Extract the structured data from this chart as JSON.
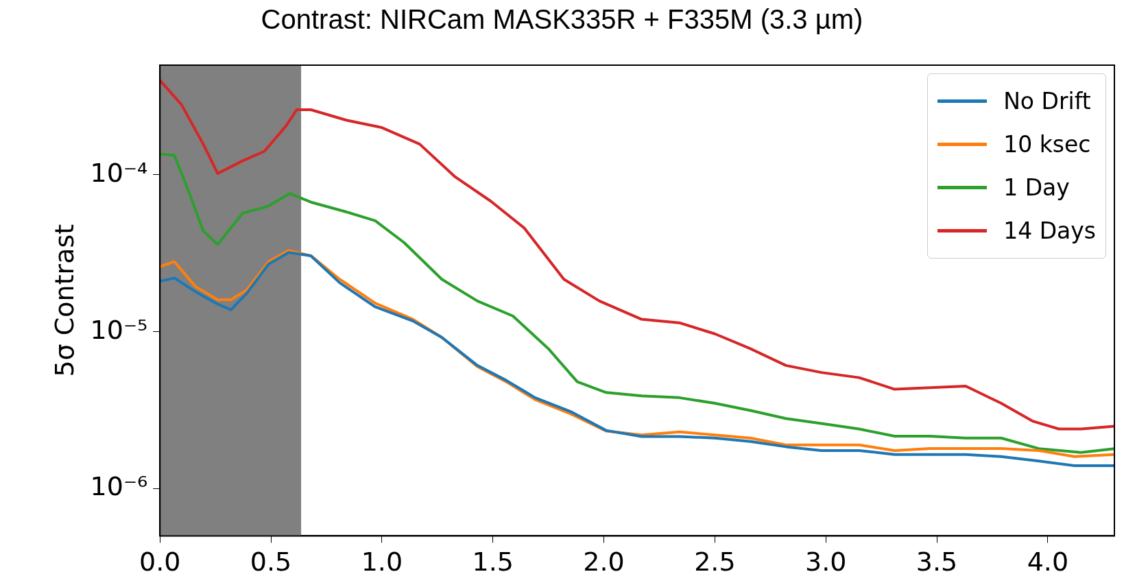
{
  "chart_data": {
    "type": "line",
    "title": "Contrast: NIRCam MASK335R + F335M (3.3 µm)",
    "ylabel": "5σ Contrast",
    "xlim": [
      0,
      4.3
    ],
    "xticks": [
      {
        "value": 0,
        "label": "0.0"
      },
      {
        "value": 0.5,
        "label": "0.5"
      },
      {
        "value": 1,
        "label": "1.0"
      },
      {
        "value": 1.5,
        "label": "1.5"
      },
      {
        "value": 2,
        "label": "2.0"
      },
      {
        "value": 2.5,
        "label": "2.5"
      },
      {
        "value": 3,
        "label": "3.0"
      },
      {
        "value": 3.5,
        "label": "3.5"
      },
      {
        "value": 4,
        "label": "4.0"
      }
    ],
    "ylim": [
      5e-07,
      0.0005
    ],
    "yticks": [
      {
        "value": 1e-06,
        "label": "10⁻⁶"
      },
      {
        "value": 1e-05,
        "label": "10⁻⁵"
      },
      {
        "value": 0.0001,
        "label": "10⁻⁴"
      }
    ],
    "log": "y",
    "grid": false,
    "legend": "top right",
    "line_style": "solid",
    "marker": "none",
    "bands": [
      {
        "axis": "x",
        "from": 0,
        "to": 0.636,
        "color": "#808080"
      }
    ],
    "series": [
      {
        "name": "No Drift",
        "color": "#1f77b4",
        "x": [
          0,
          0.065,
          0.16,
          0.26,
          0.32,
          0.39,
          0.49,
          0.58,
          0.68,
          0.81,
          0.97,
          1.14,
          1.27,
          1.43,
          1.56,
          1.69,
          1.85,
          2.01,
          2.17,
          2.34,
          2.5,
          2.66,
          2.82,
          2.98,
          3.15,
          3.31,
          3.47,
          3.63,
          3.79,
          3.96,
          4.12,
          4.3
        ],
        "values": [
          2.1e-05,
          2.2e-05,
          1.8e-05,
          1.5e-05,
          1.38e-05,
          1.75e-05,
          2.7e-05,
          3.2e-05,
          3.05e-05,
          2.05e-05,
          1.44e-05,
          1.17e-05,
          9.2e-06,
          6.1e-06,
          4.9e-06,
          3.8e-06,
          3.1e-06,
          2.35e-06,
          2.15e-06,
          2.15e-06,
          2.1e-06,
          2e-06,
          1.85e-06,
          1.75e-06,
          1.75e-06,
          1.65e-06,
          1.65e-06,
          1.65e-06,
          1.6e-06,
          1.5e-06,
          1.4e-06,
          1.4e-06
        ]
      },
      {
        "name": "10 ksec",
        "color": "#ff7f0e",
        "x": [
          0,
          0.065,
          0.16,
          0.26,
          0.32,
          0.39,
          0.49,
          0.58,
          0.68,
          0.81,
          0.97,
          1.14,
          1.27,
          1.43,
          1.56,
          1.69,
          1.85,
          2.01,
          2.17,
          2.34,
          2.5,
          2.66,
          2.82,
          2.98,
          3.15,
          3.31,
          3.47,
          3.63,
          3.79,
          3.96,
          4.12,
          4.3
        ],
        "values": [
          2.6e-05,
          2.8e-05,
          1.94e-05,
          1.6e-05,
          1.6e-05,
          1.84e-05,
          2.8e-05,
          3.3e-05,
          3.05e-05,
          2.16e-05,
          1.52e-05,
          1.2e-05,
          9.2e-06,
          6e-06,
          4.8e-06,
          3.7e-06,
          3e-06,
          2.33e-06,
          2.2e-06,
          2.3e-06,
          2.2e-06,
          2.1e-06,
          1.9e-06,
          1.9e-06,
          1.9e-06,
          1.75e-06,
          1.8e-06,
          1.8e-06,
          1.8e-06,
          1.75e-06,
          1.6e-06,
          1.65e-06
        ]
      },
      {
        "name": "1 Day",
        "color": "#2ca02c",
        "x": [
          0,
          0.065,
          0.13,
          0.195,
          0.26,
          0.373,
          0.487,
          0.584,
          0.68,
          0.84,
          0.97,
          1.1,
          1.27,
          1.43,
          1.59,
          1.75,
          1.88,
          2.01,
          2.17,
          2.34,
          2.5,
          2.66,
          2.82,
          2.98,
          3.15,
          3.31,
          3.47,
          3.63,
          3.79,
          3.96,
          4.15,
          4.3
        ],
        "values": [
          0.000136,
          0.000133,
          7.8e-05,
          4.4e-05,
          3.6e-05,
          5.7e-05,
          6.3e-05,
          7.6e-05,
          6.7e-05,
          5.8e-05,
          5.1e-05,
          3.7e-05,
          2.16e-05,
          1.57e-05,
          1.26e-05,
          7.8e-06,
          4.8e-06,
          4.1e-06,
          3.9e-06,
          3.8e-06,
          3.5e-06,
          3.15e-06,
          2.8e-06,
          2.6e-06,
          2.4e-06,
          2.16e-06,
          2.16e-06,
          2.1e-06,
          2.1e-06,
          1.8e-06,
          1.7e-06,
          1.8e-06
        ]
      },
      {
        "name": "14 Days",
        "color": "#d62728",
        "x": [
          0,
          0.097,
          0.195,
          0.26,
          0.373,
          0.47,
          0.568,
          0.616,
          0.68,
          0.84,
          1.0,
          1.17,
          1.33,
          1.49,
          1.64,
          1.82,
          1.98,
          2.17,
          2.34,
          2.5,
          2.66,
          2.82,
          2.98,
          3.15,
          3.31,
          3.47,
          3.63,
          3.79,
          3.93,
          4.05,
          4.15,
          4.3
        ],
        "values": [
          0.0004,
          0.00028,
          0.000157,
          0.000102,
          0.000123,
          0.000141,
          0.000205,
          0.00026,
          0.00026,
          0.000223,
          0.0002,
          0.000157,
          9.7e-05,
          6.8e-05,
          4.6e-05,
          2.16e-05,
          1.57e-05,
          1.2e-05,
          1.14e-05,
          9.7e-06,
          7.8e-06,
          6.1e-06,
          5.5e-06,
          5.1e-06,
          4.3e-06,
          4.4e-06,
          4.5e-06,
          3.5e-06,
          2.7e-06,
          2.4e-06,
          2.4e-06,
          2.5e-06
        ]
      }
    ]
  }
}
